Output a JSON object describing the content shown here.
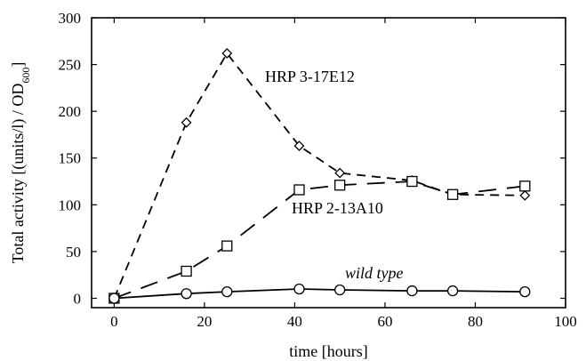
{
  "chart_data": {
    "type": "line",
    "xlabel": "time [hours]",
    "ylabel": "Total activity [(units/l) / OD",
    "ylabel_subscript": "600",
    "ylabel_close": "]",
    "xlim": [
      -5,
      100
    ],
    "ylim": [
      -10,
      300
    ],
    "xticks": [
      0,
      20,
      40,
      60,
      80,
      100
    ],
    "yticks": [
      0,
      50,
      100,
      150,
      200,
      250,
      300
    ],
    "grid": false,
    "series": [
      {
        "name": "HRP 3-17E12",
        "marker": "diamond",
        "line_style": "dashed",
        "x": [
          0,
          16,
          25,
          41,
          50,
          66,
          75,
          91
        ],
        "y": [
          0,
          188,
          262,
          163,
          134,
          126,
          111,
          110
        ]
      },
      {
        "name": "HRP 2-13A10",
        "marker": "square",
        "line_style": "long-dashed",
        "x": [
          0,
          16,
          25,
          41,
          50,
          66,
          75,
          91
        ],
        "y": [
          0,
          29,
          56,
          116,
          121,
          125,
          111,
          120
        ]
      },
      {
        "name": "wild type",
        "marker": "circle",
        "line_style": "solid",
        "x": [
          0,
          16,
          25,
          41,
          50,
          66,
          75,
          91
        ],
        "y": [
          0,
          5,
          7,
          10,
          9,
          8,
          8,
          7
        ]
      }
    ]
  }
}
